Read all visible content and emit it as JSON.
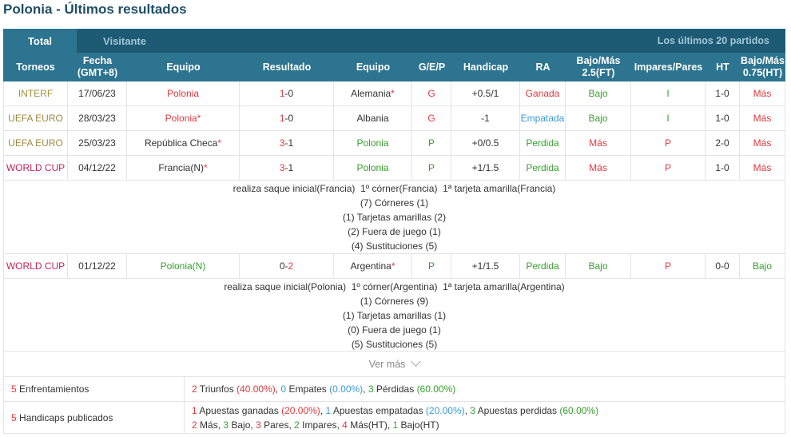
{
  "title": "Polonia - Últimos resultados",
  "tabs": [
    "Total",
    "Visitante"
  ],
  "filter_label": "Los últimos 20 partidos",
  "headers": {
    "torneos": "Torneos",
    "fecha1": "Fecha",
    "fecha2": "(GMT+8)",
    "equipo_local": "Equipo",
    "resultado": "Resultado",
    "equipo_visita": "Equipo",
    "gep": "G/E/P",
    "handicap": "Handicap",
    "ra": "RA",
    "bm1": "Bajo/Más",
    "bm2": "2.5(FT)",
    "impares": "Impares/Pares",
    "ht": "HT",
    "bmht1": "Bajo/Más",
    "bmht2": "0.75(HT)"
  },
  "rows": [
    {
      "torneo": "INTERF",
      "fecha": "17/06/23",
      "local": "Polonia",
      "local_star": "",
      "res_a": "1",
      "res_sep": "-",
      "res_b": "0",
      "visita": "Alemania",
      "visita_star": "*",
      "gep": "G",
      "handicap": "+0.5/1",
      "ra": "Ganada",
      "bm": "Bajo",
      "ip": "I",
      "ht": "1-0",
      "bmht": "Más"
    },
    {
      "torneo": "UEFA EURO",
      "fecha": "28/03/23",
      "local": "Polonia",
      "local_star": "*",
      "res_a": "1",
      "res_sep": "-",
      "res_b": "0",
      "visita": "Albania",
      "visita_star": "",
      "gep": "G",
      "handicap": "-1",
      "ra": "Empatada",
      "bm": "Bajo",
      "ip": "I",
      "ht": "1-0",
      "bmht": "Más"
    },
    {
      "torneo": "UEFA EURO",
      "fecha": "25/03/23",
      "local": "República Checa",
      "local_star": "*",
      "res_a": "3",
      "res_sep": "-",
      "res_b": "1",
      "visita": "Polonia",
      "visita_star": "",
      "gep": "P",
      "handicap": "+0/0.5",
      "ra": "Perdida",
      "bm": "Más",
      "ip": "P",
      "ht": "2-0",
      "bmht": "Más"
    },
    {
      "torneo": "WORLD CUP",
      "fecha": "04/12/22",
      "local": "Francia(N)",
      "local_star": "*",
      "res_a": "3",
      "res_sep": "-",
      "res_b": "1",
      "visita": "Polonia",
      "visita_star": "",
      "gep": "P",
      "handicap": "+1/1.5",
      "ra": "Perdida",
      "bm": "Más",
      "ip": "P",
      "ht": "1-0",
      "bmht": "Más"
    },
    {
      "torneo": "WORLD CUP",
      "fecha": "01/12/22",
      "local": "Polonia(N)",
      "local_star": "",
      "res_a": "0",
      "res_sep": "-",
      "res_b": "2",
      "visita": "Argentina",
      "visita_star": "*",
      "gep": "P",
      "handicap": "+1/1.5",
      "ra": "Perdida",
      "bm": "Bajo",
      "ip": "P",
      "ht": "0-0",
      "bmht": "Bajo"
    }
  ],
  "detail1": [
    "realiza saque inicial(Francia)  1º córner(Francia)  1ª tarjeta amarilla(Francia)",
    "(7) Córneres (1)",
    "(1) Tarjetas amarillas (2)",
    "(2) Fuera de juego (1)",
    "(4) Sustituciones (5)"
  ],
  "detail2": [
    "realiza saque inicial(Polonia)  1º córner(Argentina)  1ª tarjeta amarilla(Argentina)",
    "(1) Córneres (9)",
    "(1) Tarjetas amarillas (1)",
    "(0) Fuera de juego (1)",
    "(5) Sustituciones (5)"
  ],
  "ver_mas": "Ver más",
  "summary": {
    "enf_num": "5",
    "enf_label": " Enfrentamientos",
    "wins_n": "2",
    "wins_t": " Triunfos ",
    "wins_p": "(40.00%)",
    "draws_n": "0",
    "draws_t": " Empates ",
    "draws_p": "(0.00%)",
    "loss_n": "3",
    "loss_t": " Pérdidas ",
    "loss_p": "(60.00%)",
    "hcp_num": "5",
    "hcp_label": " Handicaps publicados",
    "ag_n": "1",
    "ag_t": " Apuestas ganadas ",
    "ag_p": "(20.00%)",
    "ae_n": "1",
    "ae_t": " Apuestas empatadas ",
    "ae_p": "(20.00%)",
    "ap_n": "3",
    "ap_t": " Apuestas perdidas ",
    "ap_p": "(60.00%)",
    "mas_n": "2",
    "mas_t": " Más, ",
    "bajo_n": "3",
    "bajo_t": " Bajo, ",
    "pares_n": "3",
    "pares_t": " Pares, ",
    "impares_n": "2",
    "impares_t": " Impares, ",
    "masht_n": "4",
    "masht_t": " Más(HT), ",
    "bajoht_n": "1",
    "bajoht_t": " Bajo(HT)"
  },
  "colors": {
    "header_dark": "#1d5a74",
    "header": "#2d7490",
    "win": "#e0393e",
    "lose": "#36a02c",
    "draw": "#3a9bd8",
    "world_cup": "#c2245c"
  }
}
